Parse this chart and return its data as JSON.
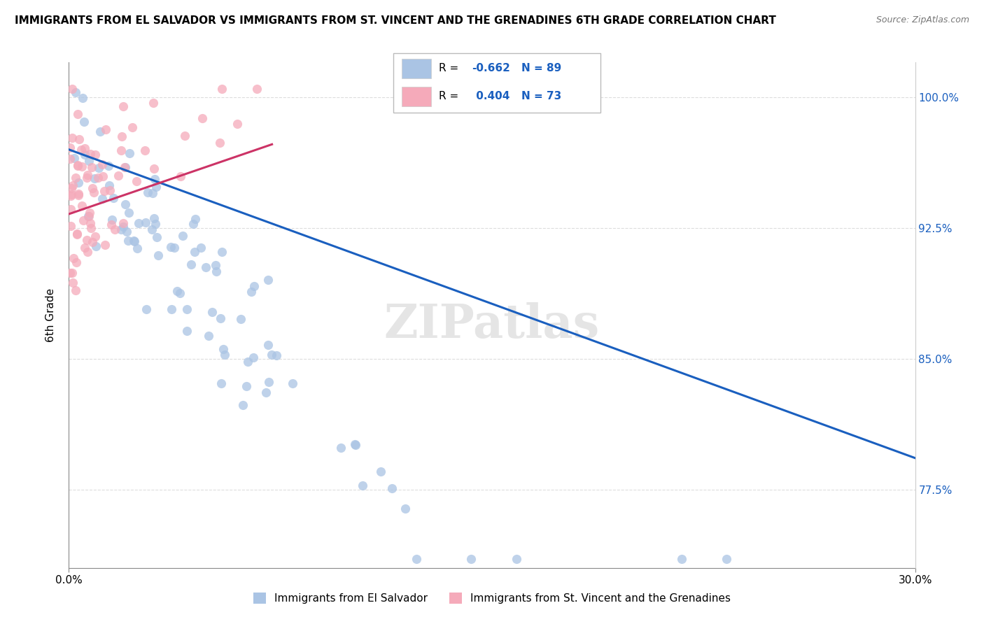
{
  "title": "IMMIGRANTS FROM EL SALVADOR VS IMMIGRANTS FROM ST. VINCENT AND THE GRENADINES 6TH GRADE CORRELATION CHART",
  "source": "Source: ZipAtlas.com",
  "ylabel": "6th Grade",
  "xlim": [
    0.0,
    0.3
  ],
  "ylim": [
    0.73,
    1.02
  ],
  "ytick_values": [
    0.775,
    0.85,
    0.925,
    1.0
  ],
  "ytick_labels": [
    "77.5%",
    "85.0%",
    "92.5%",
    "100.0%"
  ],
  "xtick_values": [
    0.0,
    0.3
  ],
  "xtick_labels": [
    "0.0%",
    "30.0%"
  ],
  "R_blue": -0.662,
  "N_blue": 89,
  "R_pink": 0.404,
  "N_pink": 73,
  "blue_dot_color": "#aac4e4",
  "pink_dot_color": "#f5aaba",
  "blue_line_color": "#1a5fbf",
  "pink_line_color": "#cc3366",
  "legend_label_blue": "Immigrants from El Salvador",
  "legend_label_pink": "Immigrants from St. Vincent and the Grenadines",
  "blue_trend_x": [
    0.0,
    0.3
  ],
  "blue_trend_y": [
    0.97,
    0.793
  ],
  "pink_trend_x": [
    0.0,
    0.072
  ],
  "pink_trend_y": [
    0.933,
    0.973
  ],
  "grid_color": "#dddddd",
  "watermark": "ZIPatlas",
  "title_fontsize": 11,
  "axis_fontsize": 11,
  "tick_fontsize": 11
}
